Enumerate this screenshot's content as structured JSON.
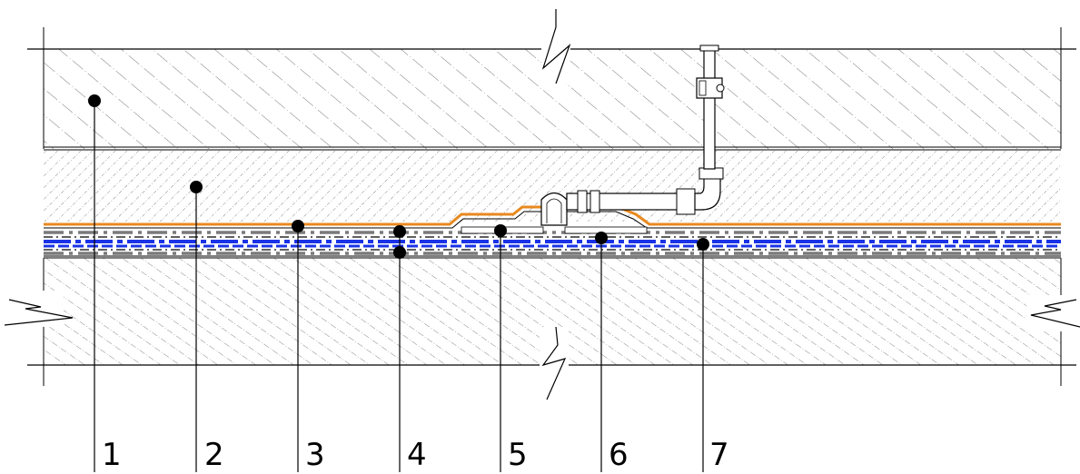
{
  "callouts": [
    {
      "label": "1"
    },
    {
      "label": "2"
    },
    {
      "label": "3"
    },
    {
      "label": "4"
    },
    {
      "label": "5"
    },
    {
      "label": "6"
    },
    {
      "label": "7"
    }
  ],
  "colors": {
    "line": "#000000",
    "hatch": "#4a4a4a",
    "membrane_orange": "#e8891f",
    "layer_blue": "#1a33e6",
    "layer_grey": "#7a7a7a",
    "background": "#ffffff"
  }
}
